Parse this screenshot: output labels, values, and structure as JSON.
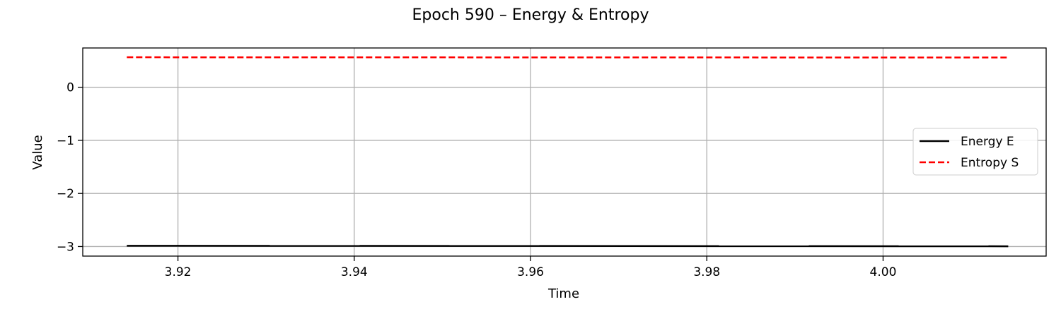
{
  "chart_data": {
    "type": "line",
    "title": "Epoch 590 – Energy & Entropy",
    "xlabel": "Time",
    "ylabel": "Value",
    "xlim": [
      3.9092,
      4.0185
    ],
    "ylim": [
      -3.18,
      0.74
    ],
    "xticks": [
      3.92,
      3.94,
      3.96,
      3.98,
      4.0
    ],
    "xtick_labels": [
      "3.92",
      "3.94",
      "3.96",
      "3.98",
      "4.00"
    ],
    "yticks": [
      -3,
      -2,
      -1,
      0
    ],
    "ytick_labels": [
      "−3",
      "−2",
      "−1",
      "0"
    ],
    "grid": true,
    "legend_position": "center-right",
    "series": [
      {
        "name": "Energy E",
        "color": "#000000",
        "dash": "solid",
        "x": [
          3.9142,
          4.0142
        ],
        "y": [
          -2.985,
          -2.995
        ]
      },
      {
        "name": "Entropy S",
        "color": "#ff0000",
        "dash": "dashed",
        "x": [
          3.9142,
          4.0142
        ],
        "y": [
          0.565,
          0.56
        ]
      }
    ]
  }
}
